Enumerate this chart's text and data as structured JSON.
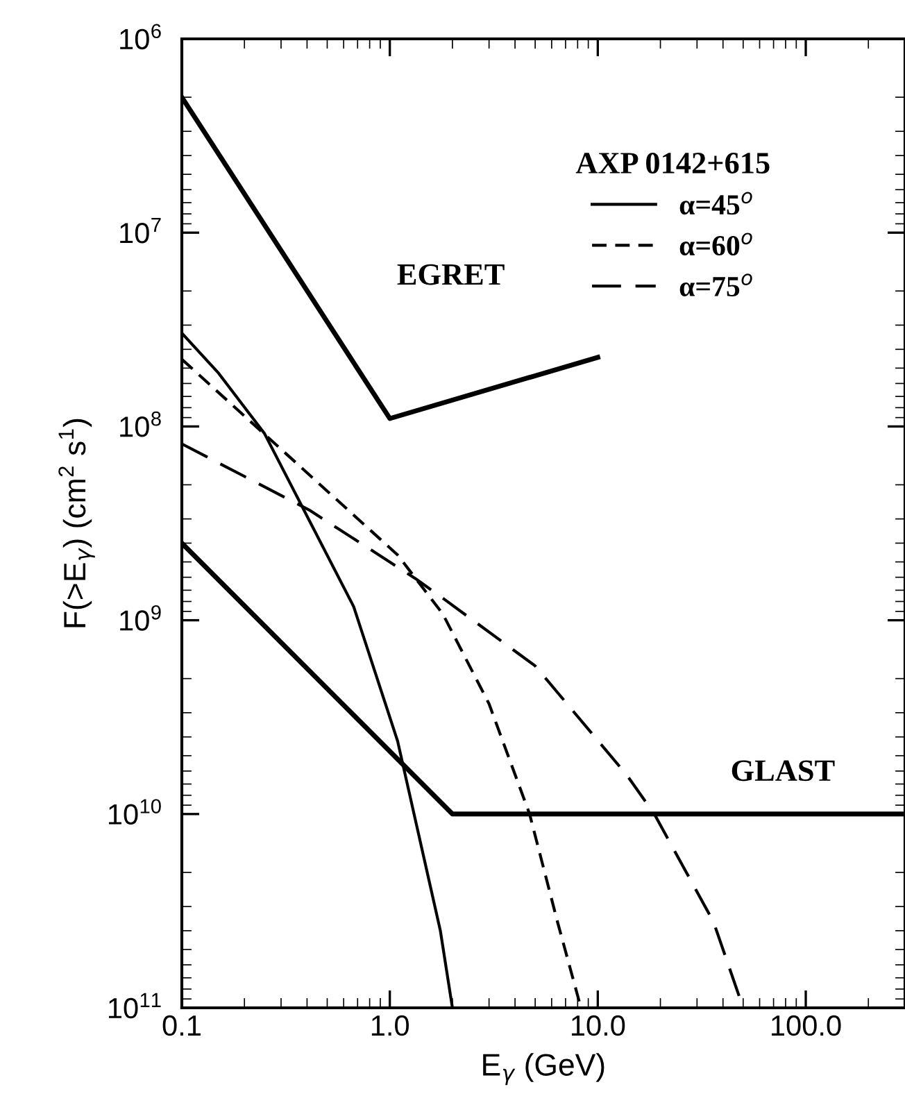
{
  "chart_data": {
    "type": "line",
    "xlabel": "E$_{γ}$ (GeV)",
    "ylabel": "F(>E$_{γ}$) (cm$^{2}$ s$^{1}$)",
    "legend_title": "AXP 0142+615",
    "log": "xy",
    "xlim": [
      0.1,
      300
    ],
    "ylim": [
      100000000000.0,
      1000000.0
    ],
    "xticks": [
      {
        "value": 0.1,
        "label": "0.1"
      },
      {
        "value": 1,
        "label": "1.0"
      },
      {
        "value": 10,
        "label": "10.0"
      },
      {
        "value": 100,
        "label": "100.0"
      }
    ],
    "yticks": [
      {
        "value": 100000000000.0,
        "label": "10$^{11}$"
      },
      {
        "value": 10000000000.0,
        "label": "10$^{10}$"
      },
      {
        "value": 1000000000.0,
        "label": "10$^{9}$"
      },
      {
        "value": 100000000.0,
        "label": "10$^{8}$"
      },
      {
        "value": 10000000.0,
        "label": "10$^{7}$"
      },
      {
        "value": 1000000.0,
        "label": "10$^{6}$"
      }
    ],
    "grid": false,
    "legend": "top right",
    "marker": "none",
    "series": [
      {
        "color": "#000000",
        "line_style": "solid",
        "x": [
          0.1,
          1.0,
          10
        ],
        "values": [
          2000000.0,
          91000000.0,
          44000000.0
        ]
      },
      {
        "color": "#000000",
        "line_style": "solid",
        "x": [
          0.1,
          2.0,
          300
        ],
        "values": [
          400000000.0,
          10000000000.0,
          10000000000.0
        ]
      },
      {
        "name": "α=45$^{o}$",
        "color": "#000000",
        "line_style": "solid",
        "x": [
          0.1,
          0.15,
          0.25,
          0.67,
          1.09,
          1.75,
          2.0
        ],
        "values": [
          33000000.0,
          53000000.0,
          109000000.0,
          850000000.0,
          4200000000.0,
          40000000000.0,
          100000000000.0
        ]
      },
      {
        "name": "α=60$^{o}$",
        "color": "#000000",
        "line_style": "dashed",
        "x": [
          0.1,
          1.09,
          1.8,
          3.0,
          4.7,
          6.4,
          8.3
        ],
        "values": [
          45000000.0,
          460000000.0,
          930000000.0,
          2700000000.0,
          10000000000.0,
          36000000000.0,
          100000000000.0
        ]
      },
      {
        "name": "α=75$^{o}$",
        "color": "#000000",
        "line_style": "dashdot",
        "x": [
          0.1,
          0.41,
          1.33,
          1.8,
          5.0,
          13.8,
          18.7,
          36,
          50
        ],
        "values": [
          123000000.0,
          270000000.0,
          610000000.0,
          770000000.0,
          1720000000.0,
          6300000000.0,
          10000000000.0,
          36000000000.0,
          100000000000.0
        ]
      }
    ],
    "annotations": [
      "EGRET",
      "GLAST"
    ]
  }
}
